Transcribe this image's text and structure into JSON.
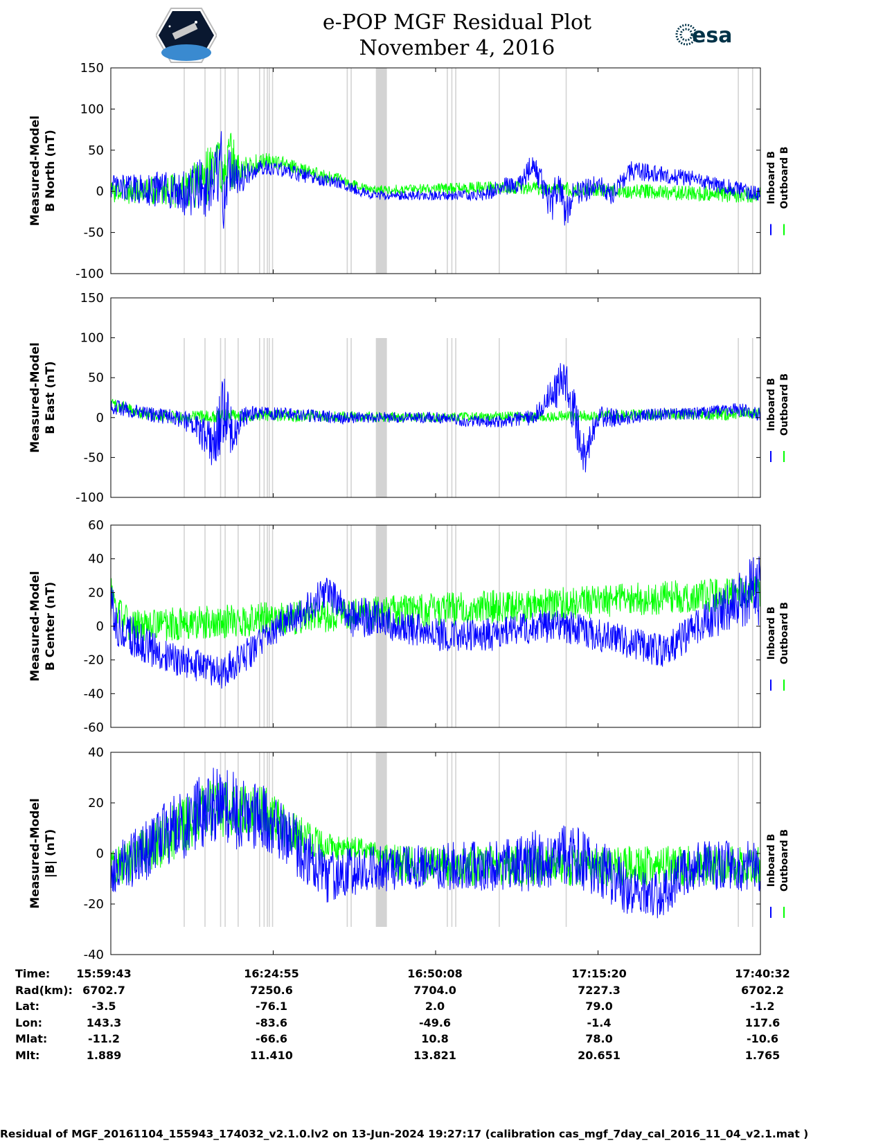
{
  "title": "e-POP MGF Residual Plot",
  "subtitle": "November 4, 2016",
  "logos": {
    "left": "CASSIOPE",
    "right": "esa"
  },
  "colors": {
    "inboard": "#0000ff",
    "outboard": "#00ff00",
    "gap": "#d3d3d3"
  },
  "chart_data": [
    {
      "type": "line",
      "ylabel": [
        "Measured-Model",
        "B North (nT)"
      ],
      "ylim": [
        -100,
        150
      ],
      "yticks": [
        "150",
        "100",
        "50",
        "0",
        "-50",
        "-100"
      ],
      "series": [
        {
          "name": "Inboard B",
          "color": "#0000ff",
          "x": [
            0,
            4,
            8,
            10,
            12,
            13.5,
            15,
            17,
            17.5,
            18,
            20,
            22,
            24,
            27,
            30,
            33,
            35,
            37,
            40,
            43,
            48,
            53,
            57,
            60,
            63,
            65,
            68,
            69,
            70,
            71,
            74,
            75,
            77,
            80,
            85,
            90,
            100
          ],
          "y": [
            5,
            3,
            2,
            0,
            -5,
            10,
            -5,
            30,
            -25,
            30,
            15,
            25,
            30,
            25,
            18,
            12,
            10,
            5,
            -5,
            -5,
            -5,
            -5,
            -5,
            5,
            10,
            35,
            -20,
            15,
            -30,
            -5,
            5,
            10,
            -5,
            25,
            20,
            15,
            -5
          ],
          "amp": [
            15,
            18,
            22,
            25,
            30,
            32,
            35,
            45,
            50,
            30,
            20,
            10,
            10,
            9,
            9,
            9,
            8,
            7,
            6,
            6,
            6,
            6,
            8,
            10,
            12,
            15,
            25,
            25,
            20,
            15,
            14,
            12,
            12,
            12,
            10,
            10,
            10
          ]
        },
        {
          "name": "Outboard B",
          "color": "#00ff00",
          "x": [
            0,
            4,
            8,
            12,
            17.5,
            20,
            24,
            27,
            30,
            33,
            35,
            40,
            60,
            100
          ],
          "y": [
            0,
            0,
            2,
            0,
            40,
            25,
            38,
            33,
            25,
            18,
            15,
            2,
            5,
            -5
          ],
          "amp": [
            14,
            16,
            18,
            25,
            50,
            18,
            9,
            8,
            8,
            8,
            7,
            5,
            8,
            10
          ]
        }
      ]
    },
    {
      "type": "line",
      "ylabel": [
        "Measured-Model",
        "B East (nT)"
      ],
      "ylim": [
        -100,
        150
      ],
      "yticks": [
        "150",
        "100",
        "50",
        "0",
        "-50",
        "-100"
      ],
      "series": [
        {
          "name": "Inboard B",
          "color": "#0000ff",
          "x": [
            0,
            5,
            10,
            13,
            15,
            16.5,
            17.5,
            19,
            20,
            22,
            25,
            30,
            35,
            40,
            45,
            50,
            55,
            60,
            65,
            70,
            73,
            75,
            80,
            85,
            90,
            95,
            98,
            100
          ],
          "y": [
            15,
            5,
            0,
            -10,
            -30,
            -20,
            20,
            -30,
            0,
            5,
            5,
            3,
            0,
            0,
            0,
            0,
            -5,
            -5,
            0,
            50,
            -50,
            0,
            0,
            5,
            5,
            10,
            10,
            5
          ],
          "amp": [
            10,
            9,
            10,
            15,
            30,
            40,
            45,
            30,
            15,
            10,
            8,
            8,
            8,
            7,
            7,
            7,
            7,
            8,
            10,
            30,
            30,
            15,
            8,
            8,
            8,
            8,
            10,
            10
          ]
        },
        {
          "name": "Outboard B",
          "color": "#00ff00",
          "x": [
            0,
            5,
            10,
            20,
            50,
            100
          ],
          "y": [
            18,
            5,
            0,
            3,
            0,
            5
          ],
          "amp": [
            8,
            8,
            8,
            8,
            6,
            8
          ]
        }
      ]
    },
    {
      "type": "line",
      "ylabel": [
        "Measured-Model",
        "B Center (nT)"
      ],
      "ylim": [
        -60,
        60
      ],
      "yticks": [
        "60",
        "40",
        "20",
        "0",
        "-20",
        "-40",
        "-60"
      ],
      "series": [
        {
          "name": "Inboard B",
          "color": "#0000ff",
          "x": [
            0,
            1,
            5,
            10,
            15,
            17,
            20,
            23,
            26,
            30,
            33,
            35,
            37,
            40,
            45,
            50,
            55,
            60,
            65,
            70,
            75,
            80,
            85,
            87,
            90,
            92,
            95,
            98,
            100
          ],
          "y": [
            15,
            0,
            -10,
            -20,
            -25,
            -28,
            -20,
            -10,
            0,
            10,
            20,
            15,
            5,
            5,
            0,
            -5,
            -5,
            -5,
            0,
            0,
            -5,
            -10,
            -15,
            -10,
            0,
            5,
            10,
            20,
            20
          ],
          "amp": [
            12,
            12,
            12,
            10,
            10,
            10,
            10,
            10,
            10,
            10,
            10,
            10,
            12,
            12,
            10,
            10,
            10,
            10,
            10,
            10,
            10,
            10,
            10,
            10,
            12,
            12,
            15,
            20,
            25
          ]
        },
        {
          "name": "Outboard B",
          "color": "#00ff00",
          "x": [
            0,
            1,
            3,
            100
          ],
          "y": [
            20,
            10,
            0,
            20
          ],
          "amp": [
            10,
            10,
            10,
            10
          ]
        }
      ]
    },
    {
      "type": "line",
      "ylabel": [
        "Measured-Model",
        "|B| (nT)"
      ],
      "ylim": [
        -40,
        40
      ],
      "yticks": [
        "40",
        "20",
        "0",
        "-20",
        "-40"
      ],
      "series": [
        {
          "name": "Inboard B",
          "color": "#0000ff",
          "x": [
            0,
            1,
            5,
            10,
            15,
            17,
            20,
            22,
            24,
            30,
            33,
            35,
            40,
            45,
            50,
            55,
            60,
            65,
            70,
            75,
            80,
            83,
            85,
            90,
            95,
            100
          ],
          "y": [
            -8,
            -5,
            0,
            10,
            18,
            20,
            15,
            15,
            13,
            0,
            -10,
            -8,
            -6,
            -6,
            -5,
            -5,
            -5,
            -3,
            0,
            -5,
            -15,
            -18,
            -15,
            -5,
            -5,
            -5
          ],
          "amp": [
            10,
            10,
            12,
            14,
            15,
            16,
            15,
            14,
            13,
            12,
            10,
            10,
            9,
            9,
            9,
            10,
            10,
            12,
            12,
            12,
            10,
            10,
            10,
            10,
            10,
            10
          ]
        },
        {
          "name": "Outboard B",
          "color": "#00ff00",
          "x": [
            0,
            1,
            5,
            15,
            22,
            24,
            30,
            33,
            36,
            40,
            45,
            100
          ],
          "y": [
            -8,
            -5,
            0,
            18,
            17,
            16,
            5,
            2,
            2,
            2,
            -5,
            -5
          ],
          "amp": [
            8,
            8,
            10,
            12,
            10,
            10,
            8,
            6,
            5,
            4,
            8,
            8
          ]
        }
      ]
    }
  ],
  "gap_lines": [
    11.3,
    14.5,
    16.9,
    17.6,
    19.6,
    22.9,
    23.6,
    24.1,
    24.4,
    24.9,
    36.4,
    37.0,
    51.8,
    52.5,
    53.1,
    59.8,
    70.1,
    96.6,
    98.8
  ],
  "gap_bands": [
    [
      40.8,
      42.5
    ]
  ],
  "xticks_frac": [
    0,
    25,
    50,
    75,
    100
  ],
  "legend": {
    "inboard": "Inboard B",
    "outboard": "Outboard B"
  },
  "info_table": {
    "labels": [
      "Time:",
      "Rad(km):",
      "Lat:",
      "Lon:",
      "Mlat:",
      "Mlt:"
    ],
    "columns": [
      [
        "15:59:43",
        "6702.7",
        "-3.5",
        "143.3",
        "-11.2",
        "1.889"
      ],
      [
        "16:24:55",
        "7250.6",
        "-76.1",
        "-83.6",
        "-66.6",
        "11.410"
      ],
      [
        "16:50:08",
        "7704.0",
        "2.0",
        "-49.6",
        "10.8",
        "13.821"
      ],
      [
        "17:15:20",
        "7227.3",
        "79.0",
        "-1.4",
        "78.0",
        "20.651"
      ],
      [
        "17:40:32",
        "6702.2",
        "-1.2",
        "117.6",
        "-10.6",
        "1.765"
      ]
    ]
  },
  "footer": "Residual of MGF_20161104_155943_174032_v2.1.0.lv2 on 13-Jun-2024 19:27:17 (calibration cas_mgf_7day_cal_2016_11_04_v2.1.mat )"
}
